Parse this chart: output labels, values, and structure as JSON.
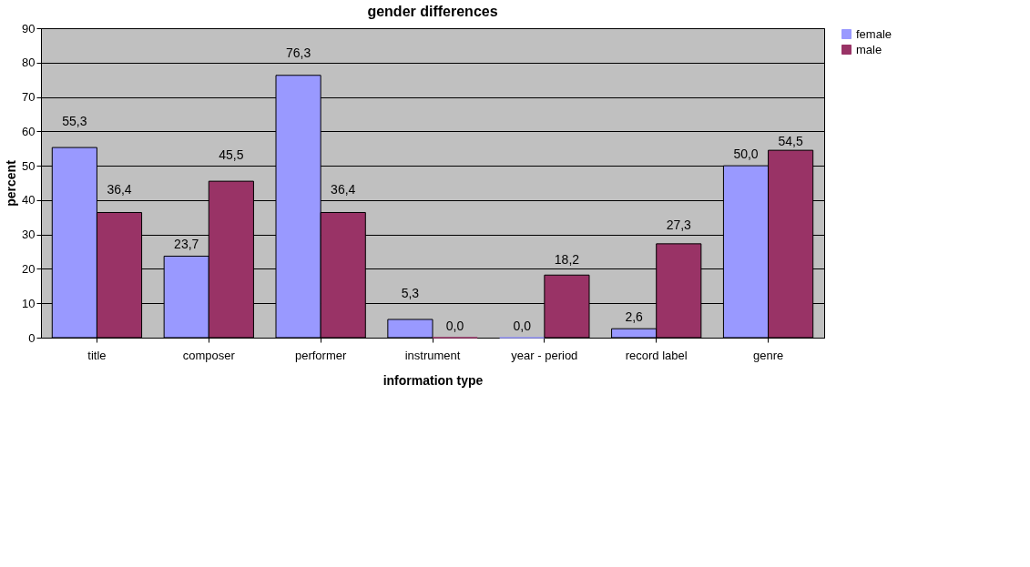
{
  "chart_data": {
    "type": "bar",
    "title": "gender differences",
    "xlabel": "information type",
    "ylabel": "percent",
    "categories": [
      "title",
      "composer",
      "performer",
      "instrument",
      "year - period",
      "record label",
      "genre"
    ],
    "series": [
      {
        "name": "female",
        "color": "#9999ff",
        "values": [
          55.3,
          23.7,
          76.3,
          5.3,
          0.0,
          2.6,
          50.0
        ],
        "value_labels": [
          "55,3",
          "23,7",
          "76,3",
          "5,3",
          "0,0",
          "2,6",
          "50,0"
        ]
      },
      {
        "name": "male",
        "color": "#993366",
        "values": [
          36.4,
          45.5,
          36.4,
          0.0,
          18.2,
          27.3,
          54.5
        ],
        "value_labels": [
          "36,4",
          "45,5",
          "36,4",
          "0,0",
          "18,2",
          "27,3",
          "54,5"
        ]
      }
    ],
    "ylim": [
      0,
      90
    ],
    "yticks": [
      0,
      10,
      20,
      30,
      40,
      50,
      60,
      70,
      80,
      90
    ],
    "grid": "y",
    "legend": "right"
  }
}
